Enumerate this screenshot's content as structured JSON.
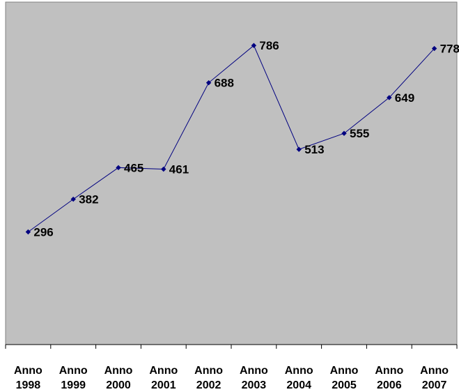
{
  "chart_data": {
    "type": "line",
    "categories": [
      [
        "Anno",
        "1998"
      ],
      [
        "Anno",
        "1999"
      ],
      [
        "Anno",
        "2000"
      ],
      [
        "Anno",
        "2001"
      ],
      [
        "Anno",
        "2002"
      ],
      [
        "Anno",
        "2003"
      ],
      [
        "Anno",
        "2004"
      ],
      [
        "Anno",
        "2005"
      ],
      [
        "Anno",
        "2006"
      ],
      [
        "Anno",
        "2007"
      ]
    ],
    "series": [
      {
        "values": [
          296,
          382,
          465,
          461,
          688,
          786,
          513,
          555,
          649,
          778
        ],
        "color": "#000080",
        "marker": "diamond"
      }
    ],
    "data_labels": [
      "296",
      "382",
      "465",
      "461",
      "688",
      "786",
      "513",
      "555",
      "649",
      "778"
    ],
    "ylim": [
      0,
      900
    ],
    "grid": false,
    "legend": "none",
    "plot_background": "#c0c0c0",
    "title": "",
    "xlabel": "",
    "ylabel": ""
  }
}
